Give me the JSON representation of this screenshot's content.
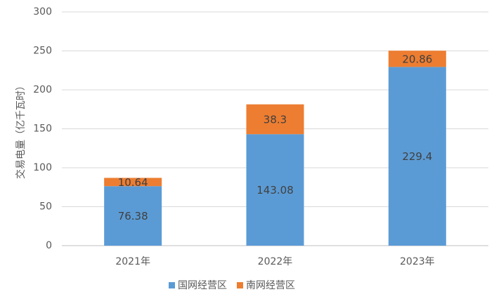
{
  "chart_data": {
    "type": "stacked_bar",
    "y_label": "交易电量（亿千瓦时）",
    "categories": [
      "2021年",
      "2022年",
      "2023年"
    ],
    "series": [
      {
        "name": "国网经营区",
        "color": "#5b9bd5",
        "values": [
          76.38,
          143.08,
          229.4
        ]
      },
      {
        "name": "南网经营区",
        "color": "#ed7d31",
        "values": [
          10.64,
          38.3,
          20.86
        ]
      }
    ],
    "ylim": [
      0,
      300
    ],
    "yticks": [
      0,
      50,
      100,
      150,
      200,
      250,
      300
    ],
    "grid": true
  }
}
